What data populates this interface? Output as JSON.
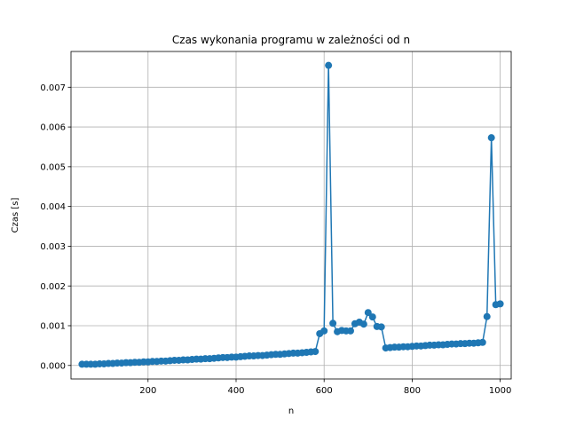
{
  "chart_data": {
    "type": "line",
    "title": "Czas wykonania programu w zależności od n",
    "xlabel": "n",
    "ylabel": "Czas [s]",
    "xlim": [
      25,
      1025
    ],
    "ylim": [
      -0.00034,
      0.0079
    ],
    "xticks": [
      200,
      400,
      600,
      800,
      1000
    ],
    "yticks": [
      0.0,
      0.001,
      0.002,
      0.003,
      0.004,
      0.005,
      0.006,
      0.007
    ],
    "xtick_labels": [
      "200",
      "400",
      "600",
      "800",
      "1000"
    ],
    "ytick_labels": [
      "0.000",
      "0.001",
      "0.002",
      "0.003",
      "0.004",
      "0.005",
      "0.006",
      "0.007"
    ],
    "grid": true,
    "series": [
      {
        "color": "#1f77b4",
        "marker": "circle",
        "x": [
          50,
          60,
          70,
          80,
          90,
          100,
          110,
          120,
          130,
          140,
          150,
          160,
          170,
          180,
          190,
          200,
          210,
          220,
          230,
          240,
          250,
          260,
          270,
          280,
          290,
          300,
          310,
          320,
          330,
          340,
          350,
          360,
          370,
          380,
          390,
          400,
          410,
          420,
          430,
          440,
          450,
          460,
          470,
          480,
          490,
          500,
          510,
          520,
          530,
          540,
          550,
          560,
          570,
          580,
          590,
          600,
          610,
          620,
          630,
          640,
          650,
          660,
          670,
          680,
          690,
          700,
          710,
          720,
          730,
          740,
          750,
          760,
          770,
          780,
          790,
          800,
          810,
          820,
          830,
          840,
          850,
          860,
          870,
          880,
          890,
          900,
          910,
          920,
          930,
          940,
          950,
          960,
          970,
          980,
          990,
          1000
        ],
        "y": [
          3e-05,
          3e-05,
          3e-05,
          3e-05,
          4e-05,
          4e-05,
          5e-05,
          5e-05,
          6e-05,
          6e-05,
          7e-05,
          7e-05,
          8e-05,
          8e-05,
          9e-05,
          9e-05,
          0.0001,
          0.0001,
          0.00011,
          0.00011,
          0.00012,
          0.00013,
          0.00013,
          0.00014,
          0.00014,
          0.00015,
          0.00016,
          0.00016,
          0.00017,
          0.00017,
          0.00018,
          0.00019,
          0.0002,
          0.0002,
          0.00021,
          0.00021,
          0.00022,
          0.00023,
          0.00024,
          0.00024,
          0.00025,
          0.00025,
          0.00026,
          0.00027,
          0.00028,
          0.00028,
          0.00029,
          0.0003,
          0.00031,
          0.00031,
          0.00032,
          0.00033,
          0.00034,
          0.00035,
          0.0008,
          0.00087,
          0.00755,
          0.00106,
          0.00085,
          0.00088,
          0.00087,
          0.00087,
          0.00105,
          0.00109,
          0.00104,
          0.00133,
          0.00122,
          0.00098,
          0.00097,
          0.00044,
          0.00045,
          0.00046,
          0.00046,
          0.00047,
          0.00047,
          0.00048,
          0.00049,
          0.00049,
          0.0005,
          0.00051,
          0.00051,
          0.00052,
          0.00052,
          0.00053,
          0.00054,
          0.00054,
          0.00055,
          0.00055,
          0.00056,
          0.00056,
          0.00057,
          0.00058,
          0.00123,
          0.00573,
          0.00153,
          0.00155
        ]
      }
    ]
  }
}
